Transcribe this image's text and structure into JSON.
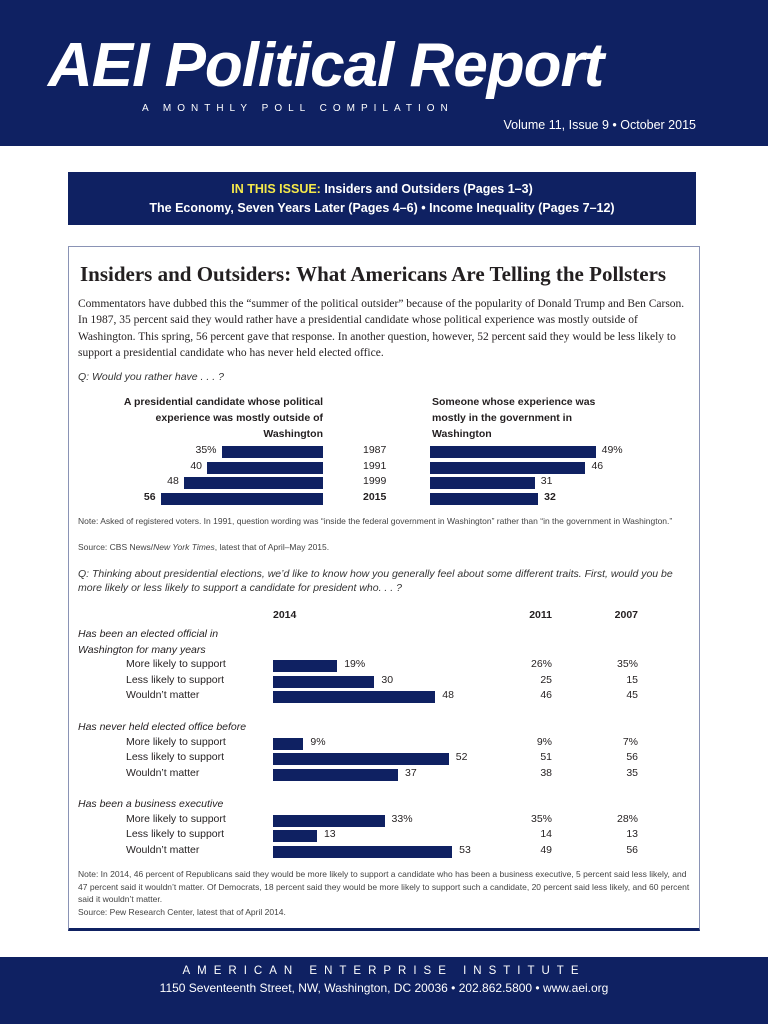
{
  "header": {
    "logo": "AEI Political Report",
    "tagline": "A MONTHLY POLL COMPILATION",
    "volume": "Volume 11, Issue 9  •  October 2015"
  },
  "issue": {
    "label": "IN THIS ISSUE:",
    "line1": " Insiders and Outsiders (Pages 1–3)",
    "line2": "The Economy, Seven Years Later (Pages 4–6)  •  Income Inequality (Pages 7–12)"
  },
  "article": {
    "title": "Insiders and Outsiders: What Americans Are Telling the Pollsters",
    "intro": "Commentators have dubbed this the “summer of the political outsider” because of the popularity of Donald Trump and Ben Carson. In 1987, 35 percent said they would rather have a presidential candidate whose political experience was mostly outside of Washington. This spring, 56 percent gave that response. In another question, however, 52 percent said they would be less likely to support a presidential candidate who has never held elected office."
  },
  "chart_data": [
    {
      "type": "bar",
      "question": "Q: Would you rather have . . . ?",
      "categories": [
        "1987",
        "1991",
        "1999",
        "2015"
      ],
      "series": [
        {
          "name": "A presidential candidate whose political experience was mostly outside of Washington",
          "values": [
            35,
            40,
            48,
            56
          ],
          "labels": [
            "35%",
            "40",
            "48",
            "56"
          ]
        },
        {
          "name": "Someone whose experience was mostly in the government in Washington",
          "values": [
            49,
            46,
            31,
            32
          ],
          "labels": [
            "49%",
            "46",
            "31",
            "32"
          ]
        }
      ],
      "note": "Note: Asked of registered voters. In 1991, question wording was “inside the federal government in Washington” rather than “in the government in Washington.”",
      "source_prefix": "Source: CBS News/",
      "source_italic": "New York Times",
      "source_suffix": ", latest that of April–May 2015."
    },
    {
      "type": "bar",
      "question": "Q: Thinking about presidential elections, we’d like to know how you generally feel about some different traits. First, would you be more likely or less likely to support a candidate for president who. . . ?",
      "columns": [
        "2014",
        "2011",
        "2007"
      ],
      "groups": [
        {
          "label": "Has been an elected official in Washington for many years",
          "rows": [
            {
              "label": "More likely to support",
              "v2014": 19,
              "l2014": "19%",
              "v2011": "26%",
              "v2007": "35%"
            },
            {
              "label": "Less likely to support",
              "v2014": 30,
              "l2014": "30",
              "v2011": "25",
              "v2007": "15"
            },
            {
              "label": "Wouldn’t matter",
              "v2014": 48,
              "l2014": "48",
              "v2011": "46",
              "v2007": "45"
            }
          ]
        },
        {
          "label": "Has never held elected office before",
          "rows": [
            {
              "label": "More likely to support",
              "v2014": 9,
              "l2014": "9%",
              "v2011": "9%",
              "v2007": "7%"
            },
            {
              "label": "Less likely to support",
              "v2014": 52,
              "l2014": "52",
              "v2011": "51",
              "v2007": "56"
            },
            {
              "label": "Wouldn’t matter",
              "v2014": 37,
              "l2014": "37",
              "v2011": "38",
              "v2007": "35"
            }
          ]
        },
        {
          "label": "Has been a business executive",
          "rows": [
            {
              "label": "More likely to support",
              "v2014": 33,
              "l2014": "33%",
              "v2011": "35%",
              "v2007": "28%"
            },
            {
              "label": "Less likely to support",
              "v2014": 13,
              "l2014": "13",
              "v2011": "14",
              "v2007": "13"
            },
            {
              "label": "Wouldn’t matter",
              "v2014": 53,
              "l2014": "53",
              "v2011": "49",
              "v2007": "56"
            }
          ]
        }
      ],
      "note": "Note: In 2014, 46 percent of Republicans said they would be more likely to support a candidate who has been a business executive, 5 percent said less likely, and 47 percent said it wouldn’t matter. Of Democrats, 18 percent said they would be more likely to support such a candidate, 20 percent said less likely, and 60 percent said it wouldn’t matter.",
      "source": "Source: Pew Research Center, latest that of April 2014."
    }
  ],
  "colors": {
    "navy": "#0f2162",
    "highlight": "#f5e94a"
  },
  "footer": {
    "org": "AMERICAN ENTERPRISE INSTITUTE",
    "address": "1150 Seventeenth Street, NW, Washington, DC 20036  •  202.862.5800  •  www.aei.org"
  }
}
